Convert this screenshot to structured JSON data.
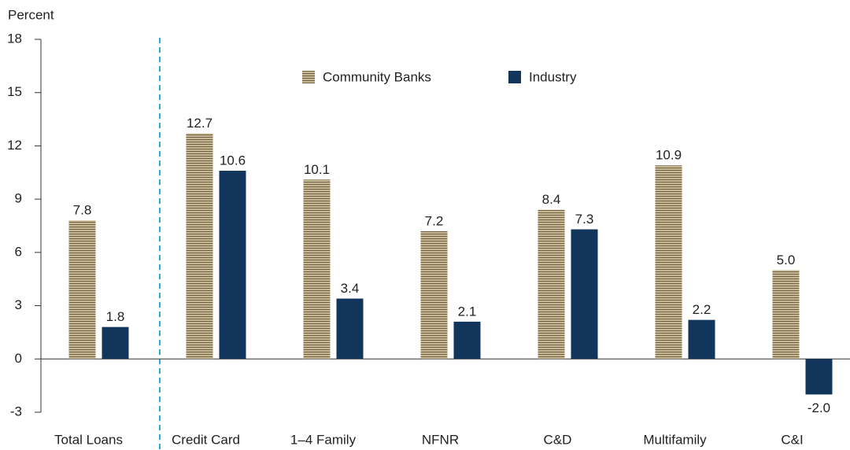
{
  "chart_data": {
    "type": "bar",
    "y_label": "Percent",
    "categories": [
      "Total Loans",
      "Credit Card",
      "1–4 Family",
      "NFNR",
      "C&D",
      "Multifamily",
      "C&I"
    ],
    "series": [
      {
        "name": "Community Banks",
        "color": "#c2b28a",
        "values": [
          7.8,
          12.7,
          10.1,
          7.2,
          8.4,
          10.9,
          5.0
        ],
        "value_labels": [
          "7.8",
          "12.7",
          "10.1",
          "7.2",
          "8.4",
          "10.9",
          "5.0"
        ]
      },
      {
        "name": "Industry",
        "color": "#12355b",
        "values": [
          1.8,
          10.6,
          3.4,
          2.1,
          7.3,
          2.2,
          -2.0
        ],
        "value_labels": [
          "1.8",
          "10.6",
          "3.4",
          "2.1",
          "7.3",
          "2.2",
          "-2.0"
        ]
      }
    ],
    "ylim": [
      -3,
      18
    ],
    "yticks": [
      -3,
      0,
      3,
      6,
      9,
      12,
      15,
      18
    ],
    "legend": "top"
  }
}
